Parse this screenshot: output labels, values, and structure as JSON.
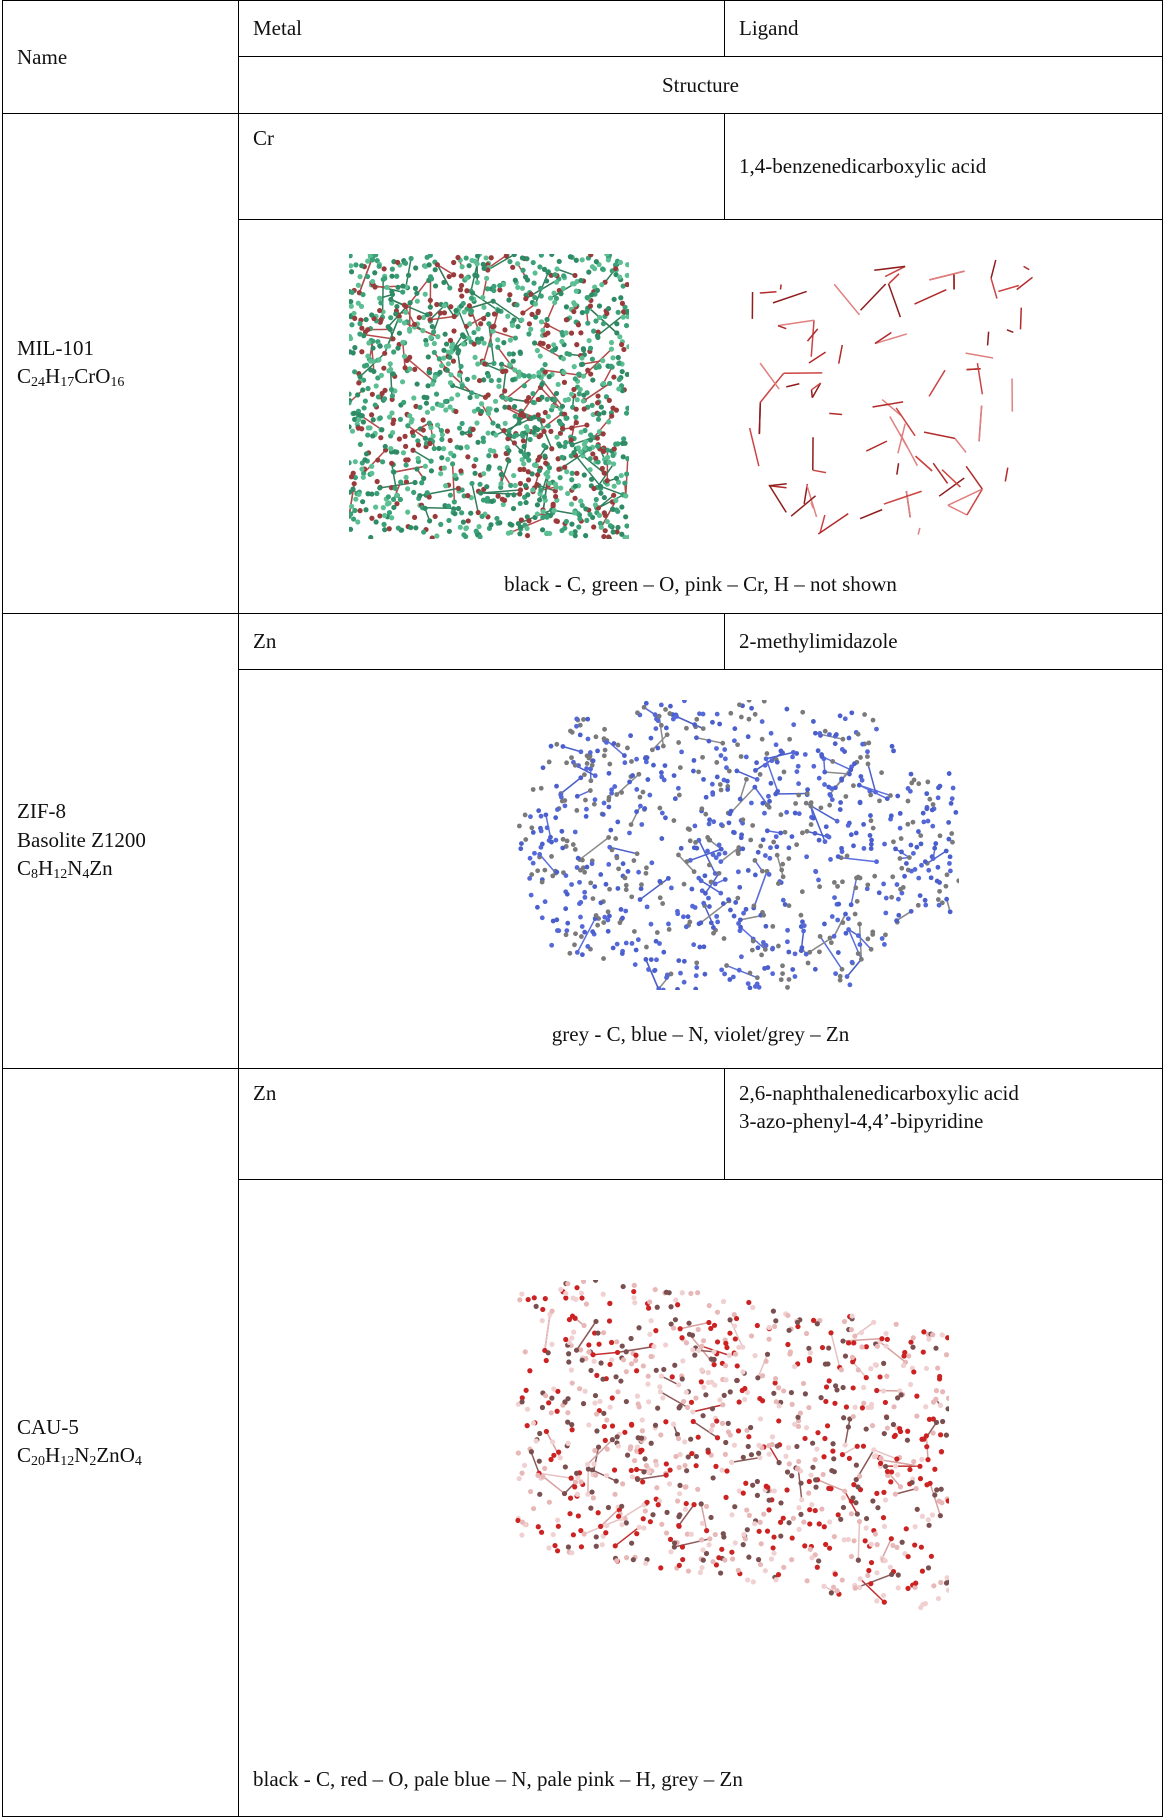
{
  "header": {
    "name": "Name",
    "metal": "Metal",
    "ligand": "Ligand",
    "structure": "Structure"
  },
  "rows": [
    {
      "name": [
        "MIL-101"
      ],
      "formula": [
        {
          "el": "C",
          "n": "24"
        },
        {
          "el": "H",
          "n": "17"
        },
        {
          "el": "Cr"
        },
        {
          "el": "O",
          "n": "16"
        }
      ],
      "metal": "Cr",
      "ligand": [
        "1,4-benzenedicarboxylic acid"
      ],
      "caption": "black - C, green – O, pink – Cr, H – not shown"
    },
    {
      "name": [
        "ZIF-8",
        "Basolite Z1200"
      ],
      "formula": [
        {
          "el": "C",
          "n": "8"
        },
        {
          "el": "H",
          "n": "12"
        },
        {
          "el": "N",
          "n": "4"
        },
        {
          "el": "Zn"
        }
      ],
      "metal": "Zn",
      "ligand": [
        "2-methylimidazole"
      ],
      "caption": "grey - C, blue – N, violet/grey – Zn"
    },
    {
      "name": [
        "CAU-5"
      ],
      "formula": [
        {
          "el": "C",
          "n": "20"
        },
        {
          "el": "H",
          "n": "12"
        },
        {
          "el": "N",
          "n": "2"
        },
        {
          "el": "Zn"
        },
        {
          "el": "O",
          "n": "4"
        }
      ],
      "metal": "Zn",
      "ligand": [
        "2,6-naphthalenedicarboxylic acid",
        "3-azo-phenyl-4,4’-bipyridine"
      ],
      "caption": "black - C, red – O, pale blue – N, pale pink – H, grey – Zn"
    }
  ]
}
